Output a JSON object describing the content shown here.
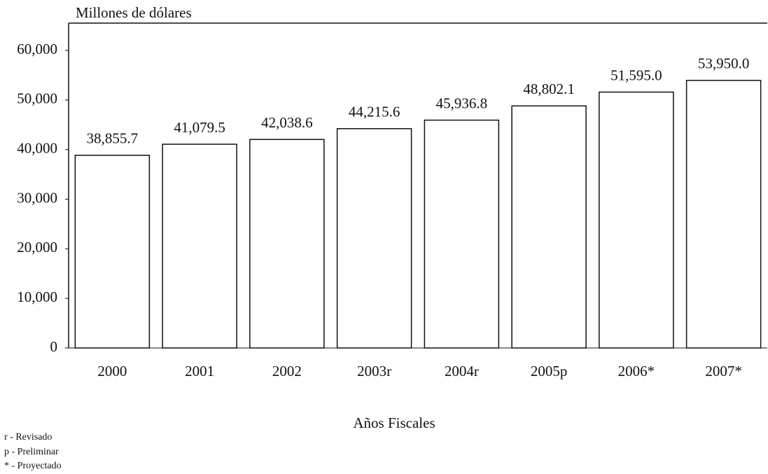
{
  "chart_data": {
    "type": "bar",
    "ylabel": "Millones de dólares",
    "xlabel": "Años Fiscales",
    "categories": [
      "2000",
      "2001",
      "2002",
      "2003r",
      "2004r",
      "2005p",
      "2006*",
      "2007*"
    ],
    "values": [
      38855.7,
      41079.5,
      42038.6,
      44215.6,
      45936.8,
      48802.1,
      51595.0,
      53950.0
    ],
    "value_labels": [
      "38,855.7",
      "41,079.5",
      "42,038.6",
      "44,215.6",
      "45,936.8",
      "48,802.1",
      "51,595.0",
      "53,950.0"
    ],
    "color": "#ffffff",
    "ylim": [
      0,
      65500
    ],
    "yticks": [
      0,
      {
        "value": 10000,
        "label": "10,000"
      },
      {
        "value": 20000,
        "label": "20,000"
      },
      {
        "value": 30000,
        "label": "30,000"
      },
      {
        "value": 40000,
        "label": "40,000"
      },
      {
        "value": 50000,
        "label": "50,000"
      },
      {
        "value": 60000,
        "label": "60,000"
      }
    ],
    "notes": [
      "r - Revisado",
      "p - Preliminar",
      "* - Proyectado"
    ]
  }
}
